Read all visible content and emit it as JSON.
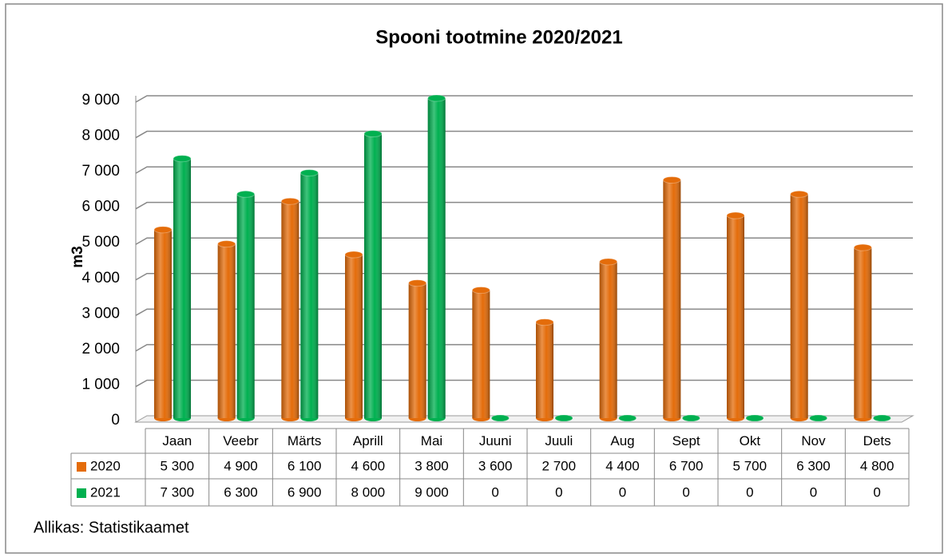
{
  "chart_data": {
    "type": "bar",
    "title": "Spooni tootmine 2020/2021",
    "ylabel": "m3",
    "source": "Allikas: Statistikaamet",
    "categories": [
      "Jaan",
      "Veebr",
      "Märts",
      "Aprill",
      "Mai",
      "Juuni",
      "Juuli",
      "Aug",
      "Sept",
      "Okt",
      "Nov",
      "Dets"
    ],
    "series": [
      {
        "name": "2020",
        "color": "#e46c0a",
        "values": [
          5300,
          4900,
          6100,
          4600,
          3800,
          3600,
          2700,
          4400,
          6700,
          5700,
          6300,
          4800
        ],
        "value_labels": [
          "5 300",
          "4 900",
          "6 100",
          "4 600",
          "3 800",
          "3 600",
          "2 700",
          "4 400",
          "6 700",
          "5 700",
          "6 300",
          "4 800"
        ]
      },
      {
        "name": "2021",
        "color": "#00b050",
        "values": [
          7300,
          6300,
          6900,
          8000,
          9000,
          0,
          0,
          0,
          0,
          0,
          0,
          0
        ],
        "value_labels": [
          "7 300",
          "6 300",
          "6 900",
          "8 000",
          "9 000",
          "0",
          "0",
          "0",
          "0",
          "0",
          "0",
          "0"
        ]
      }
    ],
    "ylim": [
      0,
      9000
    ],
    "yticks": [
      0,
      {
        "value": 1000,
        "label": "1 000"
      },
      {
        "value": 2000,
        "label": "2 000"
      },
      {
        "value": 3000,
        "label": "3 000"
      },
      {
        "value": 4000,
        "label": "4 000"
      },
      {
        "value": 5000,
        "label": "5 000"
      },
      {
        "value": 6000,
        "label": "6 000"
      },
      {
        "value": 7000,
        "label": "7 000"
      },
      {
        "value": 8000,
        "label": "8 000"
      },
      {
        "value": 9000,
        "label": "9 000"
      }
    ],
    "grid": true
  }
}
